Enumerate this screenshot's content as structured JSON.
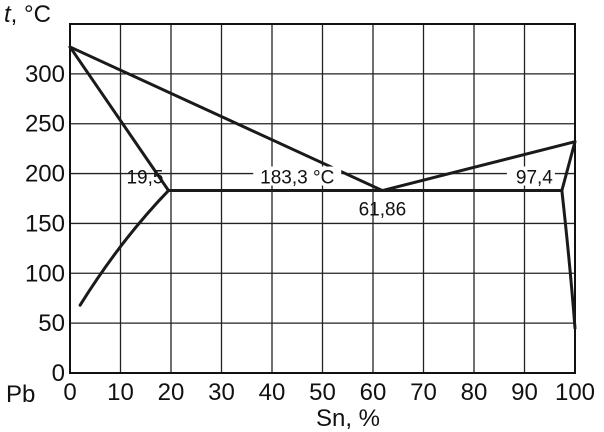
{
  "chart_data": {
    "type": "line",
    "ylabel_italic": "t",
    "ylabel_unit": ", °C",
    "origin_label": "Pb",
    "xlabel": "Sn, %",
    "xlim": [
      0,
      100
    ],
    "ylim": [
      0,
      350
    ],
    "x_ticks": [
      0,
      10,
      20,
      30,
      40,
      50,
      60,
      70,
      80,
      90,
      100
    ],
    "y_ticks": [
      0,
      50,
      100,
      150,
      200,
      250,
      300
    ],
    "grid": true,
    "series": [
      {
        "points": [
          [
            0,
            327
          ],
          [
            19.5,
            183
          ],
          [
            61.86,
            183
          ],
          [
            97.4,
            183
          ],
          [
            100,
            232
          ]
        ]
      },
      {
        "points": [
          [
            0,
            327
          ],
          [
            61.86,
            183
          ]
        ]
      },
      {
        "points": [
          [
            61.86,
            183
          ],
          [
            100,
            232
          ]
        ]
      },
      {
        "points": [
          [
            2,
            68
          ],
          [
            10,
            133
          ],
          [
            19.5,
            183
          ]
        ]
      },
      {
        "points": [
          [
            97.4,
            183
          ],
          [
            99,
            110
          ],
          [
            100,
            45
          ]
        ]
      }
    ],
    "annotations": [
      {
        "text": "19,5",
        "x": 19.5,
        "y": 183
      },
      {
        "text": "183,3 °C",
        "x": 45,
        "y": 183
      },
      {
        "text": "61,86",
        "x": 61.86,
        "y": 183
      },
      {
        "text": "97,4",
        "x": 97.4,
        "y": 183
      }
    ]
  }
}
